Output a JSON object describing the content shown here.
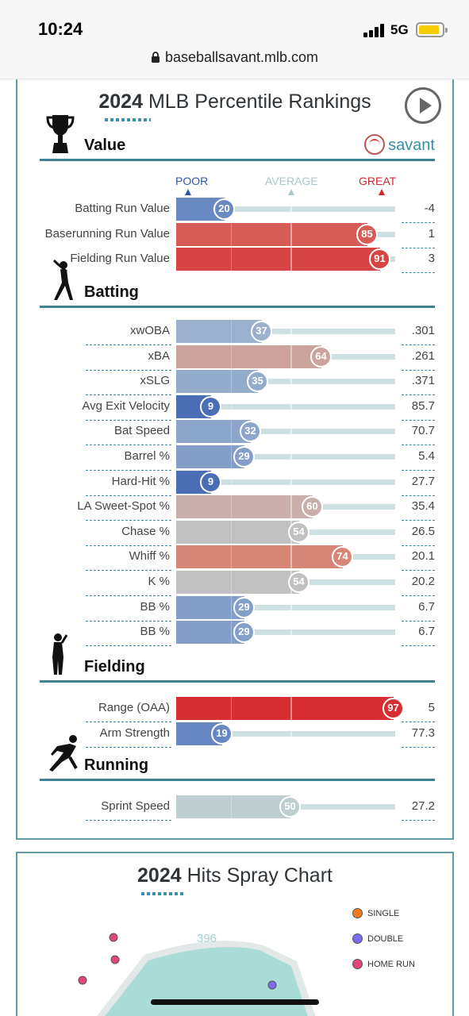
{
  "status_bar": {
    "time": "10:24",
    "network": "5G"
  },
  "browser": {
    "url": "baseballsavant.mlb.com"
  },
  "percentile_card": {
    "year": "2024",
    "title": "MLB Percentile Rankings",
    "scale": {
      "poor": "POOR",
      "average": "AVERAGE",
      "great": "GREAT"
    },
    "savant_label": "savant",
    "sections": [
      {
        "name": "Value",
        "icon": "trophy-icon",
        "rows": [
          {
            "label": "Batting Run Value",
            "percentile": 20,
            "value": "-4"
          },
          {
            "label": "Baserunning Run Value",
            "percentile": 85,
            "value": "1"
          },
          {
            "label": "Fielding Run Value",
            "percentile": 91,
            "value": "3"
          }
        ]
      },
      {
        "name": "Batting",
        "icon": "batter-icon",
        "rows": [
          {
            "label": "xwOBA",
            "percentile": 37,
            "value": ".301"
          },
          {
            "label": "xBA",
            "percentile": 64,
            "value": ".261"
          },
          {
            "label": "xSLG",
            "percentile": 35,
            "value": ".371"
          },
          {
            "label": "Avg Exit Velocity",
            "percentile": 9,
            "value": "85.7"
          },
          {
            "label": "Bat Speed",
            "percentile": 32,
            "value": "70.7"
          },
          {
            "label": "Barrel %",
            "percentile": 29,
            "value": "5.4"
          },
          {
            "label": "Hard-Hit %",
            "percentile": 9,
            "value": "27.7"
          },
          {
            "label": "LA Sweet-Spot %",
            "percentile": 60,
            "value": "35.4"
          },
          {
            "label": "Chase %",
            "percentile": 54,
            "value": "26.5"
          },
          {
            "label": "Whiff %",
            "percentile": 74,
            "value": "20.1"
          },
          {
            "label": "K %",
            "percentile": 54,
            "value": "20.2"
          },
          {
            "label": "BB %",
            "percentile": 29,
            "value": "6.7"
          },
          {
            "label": "BB %",
            "percentile": 29,
            "value": "6.7"
          }
        ]
      },
      {
        "name": "Fielding",
        "icon": "fielder-icon",
        "rows": [
          {
            "label": "Range (OAA)",
            "percentile": 97,
            "value": "5"
          },
          {
            "label": "Arm Strength",
            "percentile": 19,
            "value": "77.3"
          }
        ]
      },
      {
        "name": "Running",
        "icon": "runner-icon",
        "rows": [
          {
            "label": "Sprint Speed",
            "percentile": 50,
            "value": "27.2"
          }
        ]
      }
    ]
  },
  "spray_card": {
    "year": "2024",
    "title": "Hits Spray Chart",
    "distance_label": "396",
    "legend": [
      {
        "label": "SINGLE",
        "color": "#f07a1f"
      },
      {
        "label": "DOUBLE",
        "color": "#7a6cf0"
      },
      {
        "label": "HOME RUN",
        "color": "#e0457b"
      }
    ]
  }
}
